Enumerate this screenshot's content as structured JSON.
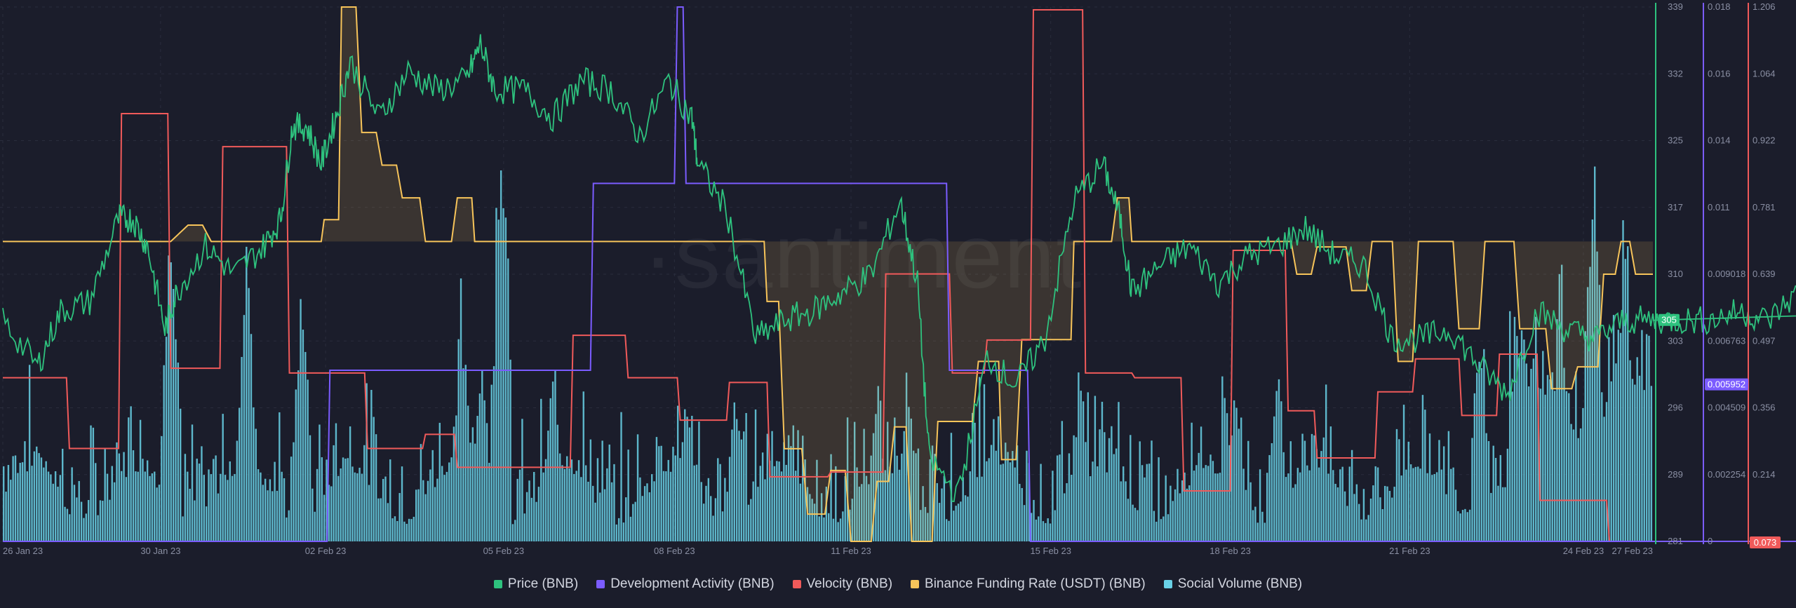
{
  "watermark": "·santiment",
  "colors": {
    "price": "#2ec27e",
    "dev": "#7b5cff",
    "velocity": "#f05a5a",
    "funding": "#f7c45a",
    "social": "#69d2e7",
    "grid": "#2a2d3d",
    "background": "#1b1d2b"
  },
  "chart_data": {
    "type": "line",
    "x_ticks": [
      "26 Jan 23",
      "30 Jan 23",
      "02 Feb 23",
      "05 Feb 23",
      "08 Feb 23",
      "11 Feb 23",
      "15 Feb 23",
      "18 Feb 23",
      "21 Feb 23",
      "24 Feb 23",
      "27 Feb 23"
    ],
    "axes": {
      "price": {
        "ticks": [
          "339",
          "332",
          "325",
          "317",
          "310",
          "303",
          "296",
          "289",
          "281"
        ],
        "range": [
          281,
          339
        ],
        "current": "305"
      },
      "dev": {
        "ticks": [
          "0.018",
          "0.016",
          "0.014",
          "0.011",
          "0.009018",
          "0.006763",
          "0.004509",
          "0.002254",
          "0"
        ],
        "range": [
          0,
          0.0203
        ],
        "current": "0.005952"
      },
      "velocity": {
        "ticks": [
          "1.206",
          "1.064",
          "0.922",
          "0.781",
          "0.639",
          "0.497",
          "0.356",
          "0.214",
          "0.073"
        ],
        "range": [
          0.073,
          1.206
        ],
        "current": "0.073"
      }
    },
    "series": [
      {
        "name": "Price (BNB)",
        "key": "price",
        "kind": "line",
        "points": [
          [
            0,
            305
          ],
          [
            1.2,
            300
          ],
          [
            2,
            306
          ],
          [
            3,
            307
          ],
          [
            4,
            316
          ],
          [
            4.5,
            316
          ],
          [
            5,
            313
          ],
          [
            5.6,
            304
          ],
          [
            6,
            308
          ],
          [
            7,
            313
          ],
          [
            8,
            310
          ],
          [
            9,
            313
          ],
          [
            9.6,
            316
          ],
          [
            10,
            326
          ],
          [
            10.5,
            326
          ],
          [
            11,
            322
          ],
          [
            11.5,
            327
          ],
          [
            12,
            333
          ],
          [
            13,
            327
          ],
          [
            14,
            332
          ],
          [
            15,
            330
          ],
          [
            16,
            331
          ],
          [
            16.5,
            335
          ],
          [
            17,
            330
          ],
          [
            18,
            330
          ],
          [
            19,
            327
          ],
          [
            20,
            331
          ],
          [
            21,
            330
          ],
          [
            22,
            325
          ],
          [
            23,
            331
          ],
          [
            23.8,
            327
          ],
          [
            24,
            322
          ],
          [
            25,
            317
          ],
          [
            26,
            303
          ],
          [
            27,
            305
          ],
          [
            28,
            306
          ],
          [
            29,
            308
          ],
          [
            30,
            310
          ],
          [
            31,
            318
          ],
          [
            31.6,
            309
          ],
          [
            32,
            290
          ],
          [
            33,
            286
          ],
          [
            34,
            301
          ],
          [
            35,
            298
          ],
          [
            36,
            303
          ],
          [
            37,
            318
          ],
          [
            38,
            322
          ],
          [
            38.6,
            316
          ],
          [
            39,
            308
          ],
          [
            40,
            311
          ],
          [
            41,
            313
          ],
          [
            42,
            309
          ],
          [
            43,
            312
          ],
          [
            44,
            313
          ],
          [
            45,
            315
          ],
          [
            46,
            312
          ],
          [
            47,
            311
          ],
          [
            48,
            303
          ],
          [
            49,
            303
          ],
          [
            50,
            304
          ],
          [
            51,
            300
          ],
          [
            52,
            297
          ],
          [
            53,
            306
          ],
          [
            54,
            304
          ],
          [
            55,
            303
          ],
          [
            56,
            305
          ],
          [
            57,
            305
          ],
          [
            58,
            305
          ],
          [
            59,
            305
          ],
          [
            60,
            306
          ],
          [
            61,
            305
          ],
          [
            62,
            308
          ],
          [
            63,
            307
          ],
          [
            64,
            305
          ],
          [
            65,
            304
          ],
          [
            66,
            305
          ],
          [
            67,
            304
          ],
          [
            68,
            305
          ],
          [
            69,
            304
          ],
          [
            70,
            305
          ],
          [
            71,
            305
          ],
          [
            72,
            305
          ],
          [
            73,
            305
          ]
        ]
      },
      {
        "name": "Development Activity (BNB)",
        "key": "dev",
        "kind": "step",
        "points": [
          [
            0,
            0
          ],
          [
            11.2,
            0
          ],
          [
            11.3,
            0.0065
          ],
          [
            20.3,
            0.0065
          ],
          [
            20.4,
            0.0136
          ],
          [
            23.2,
            0.0136
          ],
          [
            23.3,
            0.0203
          ],
          [
            23.5,
            0.0203
          ],
          [
            23.6,
            0.0136
          ],
          [
            32.6,
            0.0136
          ],
          [
            32.7,
            0.0065
          ],
          [
            35.4,
            0.0065
          ],
          [
            35.5,
            0
          ],
          [
            73,
            0
          ]
        ]
      },
      {
        "name": "Velocity (BNB)",
        "key": "velocity",
        "kind": "step",
        "points": [
          [
            0,
            0.42
          ],
          [
            2.2,
            0.42
          ],
          [
            2.3,
            0.27
          ],
          [
            4,
            0.27
          ],
          [
            4.1,
            0.98
          ],
          [
            5.7,
            0.98
          ],
          [
            5.8,
            0.44
          ],
          [
            7.5,
            0.44
          ],
          [
            7.6,
            0.91
          ],
          [
            9.8,
            0.91
          ],
          [
            9.9,
            0.43
          ],
          [
            12.5,
            0.43
          ],
          [
            12.6,
            0.27
          ],
          [
            14.5,
            0.27
          ],
          [
            14.6,
            0.3
          ],
          [
            15.6,
            0.3
          ],
          [
            15.7,
            0.23
          ],
          [
            19.6,
            0.23
          ],
          [
            19.7,
            0.51
          ],
          [
            21.5,
            0.51
          ],
          [
            21.6,
            0.42
          ],
          [
            23.3,
            0.42
          ],
          [
            23.4,
            0.33
          ],
          [
            25,
            0.33
          ],
          [
            25.1,
            0.41
          ],
          [
            26.4,
            0.41
          ],
          [
            26.5,
            0.21
          ],
          [
            28.5,
            0.21
          ],
          [
            28.6,
            0.22
          ],
          [
            30.4,
            0.22
          ],
          [
            30.5,
            0.64
          ],
          [
            32.7,
            0.64
          ],
          [
            32.8,
            0.43
          ],
          [
            33.9,
            0.43
          ],
          [
            34,
            0.5
          ],
          [
            35.5,
            0.5
          ],
          [
            35.6,
            1.2
          ],
          [
            37.3,
            1.2
          ],
          [
            37.4,
            0.43
          ],
          [
            39,
            0.43
          ],
          [
            39.1,
            0.42
          ],
          [
            40.7,
            0.42
          ],
          [
            40.8,
            0.18
          ],
          [
            42.4,
            0.18
          ],
          [
            42.5,
            0.69
          ],
          [
            44.3,
            0.69
          ],
          [
            44.4,
            0.35
          ],
          [
            45.3,
            0.35
          ],
          [
            45.4,
            0.25
          ],
          [
            47.4,
            0.25
          ],
          [
            47.5,
            0.39
          ],
          [
            48.7,
            0.39
          ],
          [
            48.8,
            0.46
          ],
          [
            50.3,
            0.46
          ],
          [
            50.4,
            0.34
          ],
          [
            51.6,
            0.34
          ],
          [
            51.7,
            0.47
          ],
          [
            53,
            0.47
          ],
          [
            53.1,
            0.16
          ],
          [
            55.4,
            0.16
          ],
          [
            55.5,
            0.073
          ],
          [
            73,
            0.073
          ]
        ]
      },
      {
        "name": "Binance Funding Rate (USDT) (BNB)",
        "key": "funding",
        "kind": "step",
        "baseline": 0.01,
        "range": [
          -0.045,
          0.053
        ],
        "points": [
          [
            0,
            0.01
          ],
          [
            5.8,
            0.01
          ],
          [
            6.4,
            0.013
          ],
          [
            6.9,
            0.013
          ],
          [
            7.2,
            0.01
          ],
          [
            11,
            0.01
          ],
          [
            11.1,
            0.014
          ],
          [
            11.6,
            0.014
          ],
          [
            11.7,
            0.053
          ],
          [
            12.2,
            0.053
          ],
          [
            12.4,
            0.03
          ],
          [
            12.9,
            0.03
          ],
          [
            13.1,
            0.024
          ],
          [
            13.6,
            0.024
          ],
          [
            13.8,
            0.018
          ],
          [
            14.4,
            0.018
          ],
          [
            14.6,
            0.01
          ],
          [
            15.5,
            0.01
          ],
          [
            15.7,
            0.018
          ],
          [
            16.2,
            0.018
          ],
          [
            16.3,
            0.01
          ],
          [
            26.3,
            0.01
          ],
          [
            26.4,
            -0.001
          ],
          [
            26.8,
            -0.001
          ],
          [
            27,
            -0.028
          ],
          [
            27.6,
            -0.028
          ],
          [
            27.8,
            -0.04
          ],
          [
            28.4,
            -0.04
          ],
          [
            28.6,
            -0.032
          ],
          [
            29.1,
            -0.032
          ],
          [
            29.3,
            -0.045
          ],
          [
            30,
            -0.045
          ],
          [
            30.2,
            -0.034
          ],
          [
            30.6,
            -0.034
          ],
          [
            30.8,
            -0.024
          ],
          [
            31.2,
            -0.024
          ],
          [
            31.4,
            -0.045
          ],
          [
            32.1,
            -0.045
          ],
          [
            32.3,
            -0.023
          ],
          [
            33.5,
            -0.023
          ],
          [
            33.7,
            -0.012
          ],
          [
            34.4,
            -0.012
          ],
          [
            34.5,
            -0.03
          ],
          [
            35,
            -0.03
          ],
          [
            35.2,
            -0.008
          ],
          [
            36.9,
            -0.008
          ],
          [
            37,
            0.01
          ],
          [
            38.3,
            0.01
          ],
          [
            38.5,
            0.018
          ],
          [
            38.9,
            0.018
          ],
          [
            39,
            0.01
          ],
          [
            44.5,
            0.01
          ],
          [
            44.7,
            0.004
          ],
          [
            45.2,
            0.004
          ],
          [
            45.4,
            0.009
          ],
          [
            46.4,
            0.009
          ],
          [
            46.6,
            0.001
          ],
          [
            47.1,
            0.001
          ],
          [
            47.3,
            0.01
          ],
          [
            48,
            0.01
          ],
          [
            48.2,
            -0.012
          ],
          [
            48.7,
            -0.012
          ],
          [
            48.9,
            0.01
          ],
          [
            50.1,
            0.01
          ],
          [
            50.3,
            -0.006
          ],
          [
            51,
            -0.006
          ],
          [
            51.2,
            0.01
          ],
          [
            52.2,
            0.01
          ],
          [
            52.4,
            -0.006
          ],
          [
            53.3,
            -0.006
          ],
          [
            53.5,
            -0.017
          ],
          [
            54.2,
            -0.017
          ],
          [
            54.4,
            -0.013
          ],
          [
            55.1,
            -0.013
          ],
          [
            55.3,
            0.004
          ],
          [
            55.7,
            0.004
          ],
          [
            55.9,
            0.01
          ],
          [
            56.2,
            0.01
          ],
          [
            56.4,
            0.004
          ],
          [
            57,
            0.004
          ]
        ]
      },
      {
        "name": "Social Volume (BNB)",
        "key": "social",
        "kind": "bar",
        "spikes": [
          [
            5.8,
            0.75
          ],
          [
            8.4,
            0.65
          ],
          [
            10.3,
            0.54
          ],
          [
            15.8,
            0.5
          ],
          [
            16.5,
            0.44
          ],
          [
            17.2,
            0.98
          ],
          [
            19,
            0.36
          ],
          [
            23.6,
            0.32
          ],
          [
            25.3,
            0.31
          ],
          [
            31.2,
            0.36
          ],
          [
            32.2,
            0.13
          ],
          [
            37.2,
            0.38
          ],
          [
            42.6,
            0.34
          ],
          [
            44,
            0.36
          ],
          [
            51,
            0.5
          ],
          [
            53.8,
            0.58
          ],
          [
            54.9,
            0.88
          ],
          [
            56,
            0.74
          ]
        ],
        "note_hidden": false
      }
    ]
  },
  "legend": [
    {
      "label": "Price (BNB)",
      "key": "price"
    },
    {
      "label": "Development Activity (BNB)",
      "key": "dev"
    },
    {
      "label": "Velocity (BNB)",
      "key": "velocity"
    },
    {
      "label": "Binance Funding Rate (USDT) (BNB)",
      "key": "funding"
    },
    {
      "label": "Social Volume (BNB)",
      "key": "social"
    }
  ]
}
